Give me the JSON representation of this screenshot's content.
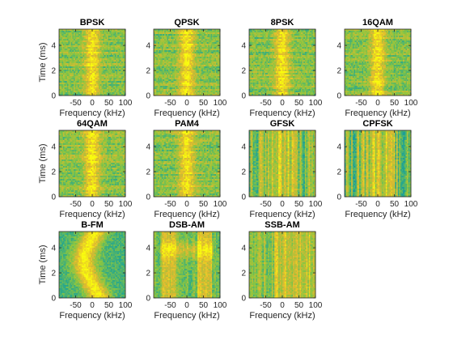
{
  "chart_data": {
    "type": "heatmap",
    "description_free": true,
    "xlabel": "Frequency (kHz)",
    "ylabel": "Time (ms)",
    "xticks": [
      -50,
      0,
      50,
      100
    ],
    "yticks": [
      0,
      2,
      4
    ],
    "xlim": [
      -100,
      100
    ],
    "ylim": [
      0,
      5.3
    ],
    "colormap": [
      "#0072bd",
      "#21a591",
      "#8cc63f",
      "#e0b830",
      "#f9fb0e"
    ],
    "panels": [
      {
        "title": "BPSK",
        "pattern": "center"
      },
      {
        "title": "QPSK",
        "pattern": "center"
      },
      {
        "title": "8PSK",
        "pattern": "center"
      },
      {
        "title": "16QAM",
        "pattern": "center"
      },
      {
        "title": "64QAM",
        "pattern": "center"
      },
      {
        "title": "PAM4",
        "pattern": "center"
      },
      {
        "title": "GFSK",
        "pattern": "stripes"
      },
      {
        "title": "CPFSK",
        "pattern": "stripes"
      },
      {
        "title": "B-FM",
        "pattern": "fm"
      },
      {
        "title": "DSB-AM",
        "pattern": "dsb"
      },
      {
        "title": "SSB-AM",
        "pattern": "ssb"
      }
    ]
  }
}
